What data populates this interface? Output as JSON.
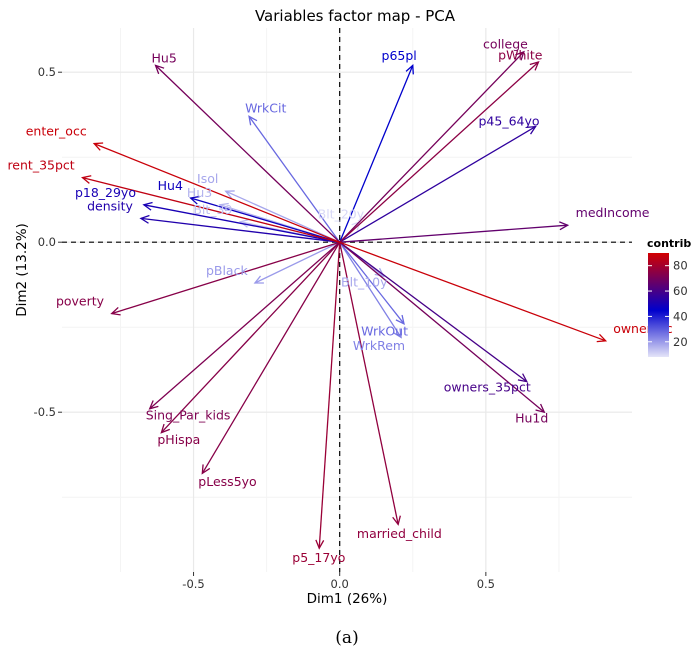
{
  "chart_data": {
    "type": "scatter",
    "subtype": "pca-variable-arrows",
    "title": "Variables factor map - PCA",
    "xlabel": "Dim1 (26%)",
    "ylabel": "Dim2 (13.2%)",
    "xlim": [
      -0.95,
      1.0
    ],
    "ylim": [
      -0.97,
      0.63
    ],
    "xticks": [
      -0.5,
      0.0,
      0.5
    ],
    "xtick_labels": [
      "-0.5",
      "0.0",
      "0.5"
    ],
    "yticks": [
      -0.5,
      0.0,
      0.5
    ],
    "ytick_labels": [
      "-0.5",
      "0.0",
      "0.5"
    ],
    "grid": true,
    "caption": "(a)",
    "legend": {
      "title": "contrib",
      "position": "right",
      "ticks": [
        80,
        60,
        40,
        20
      ],
      "tick_labels": [
        "80",
        "60",
        "40",
        "20"
      ],
      "range": [
        8,
        90
      ],
      "colors": {
        "low": "#e4e4f8",
        "mid": "#0000cc",
        "high": "#d20000"
      }
    },
    "variables": [
      {
        "name": "Hu5",
        "x": -0.63,
        "y": 0.52,
        "contrib": 70
      },
      {
        "name": "p65pl",
        "x": 0.25,
        "y": 0.52,
        "contrib": 45
      },
      {
        "name": "college",
        "x": 0.63,
        "y": 0.56,
        "contrib": 70
      },
      {
        "name": "pWhite",
        "x": 0.68,
        "y": 0.53,
        "contrib": 75
      },
      {
        "name": "WrkCit",
        "x": -0.31,
        "y": 0.37,
        "contrib": 28
      },
      {
        "name": "p45_64yo",
        "x": 0.67,
        "y": 0.34,
        "contrib": 55
      },
      {
        "name": "enter_occ",
        "x": -0.84,
        "y": 0.29,
        "contrib": 88
      },
      {
        "name": "rent_35pct",
        "x": -0.88,
        "y": 0.19,
        "contrib": 86
      },
      {
        "name": "Isol",
        "x": -0.39,
        "y": 0.15,
        "contrib": 18
      },
      {
        "name": "Hu4",
        "x": -0.51,
        "y": 0.13,
        "contrib": 48
      },
      {
        "name": "Hu3",
        "x": -0.41,
        "y": 0.11,
        "contrib": 16
      },
      {
        "name": "p18_29yo",
        "x": -0.67,
        "y": 0.11,
        "contrib": 50
      },
      {
        "name": "density",
        "x": -0.68,
        "y": 0.07,
        "contrib": 52
      },
      {
        "name": "Blt_39",
        "x": -0.34,
        "y": 0.06,
        "contrib": 14
      },
      {
        "name": "Blt_20y",
        "x": 0.07,
        "y": 0.06,
        "contrib": 10
      },
      {
        "name": "medIncome",
        "x": 0.78,
        "y": 0.05,
        "contrib": 66
      },
      {
        "name": "pBlack",
        "x": -0.29,
        "y": -0.12,
        "contrib": 20
      },
      {
        "name": "Blt_10y",
        "x": 0.15,
        "y": -0.1,
        "contrib": 18
      },
      {
        "name": "poverty",
        "x": -0.78,
        "y": -0.21,
        "contrib": 74
      },
      {
        "name": "WrkOut",
        "x": 0.22,
        "y": -0.24,
        "contrib": 28
      },
      {
        "name": "WrkRem",
        "x": 0.21,
        "y": -0.28,
        "contrib": 24
      },
      {
        "name": "owner_oc",
        "x": 0.91,
        "y": -0.29,
        "contrib": 88
      },
      {
        "name": "owners_35pct",
        "x": 0.64,
        "y": -0.41,
        "contrib": 60
      },
      {
        "name": "Hu1d",
        "x": 0.7,
        "y": -0.5,
        "contrib": 70
      },
      {
        "name": "Sing_Par_kids",
        "x": -0.65,
        "y": -0.49,
        "contrib": 72
      },
      {
        "name": "pHispa",
        "x": -0.61,
        "y": -0.56,
        "contrib": 74
      },
      {
        "name": "pLess5yo",
        "x": -0.47,
        "y": -0.68,
        "contrib": 74
      },
      {
        "name": "married_child",
        "x": 0.2,
        "y": -0.83,
        "contrib": 76
      },
      {
        "name": "p5_17yo",
        "x": -0.07,
        "y": -0.9,
        "contrib": 78
      }
    ]
  }
}
